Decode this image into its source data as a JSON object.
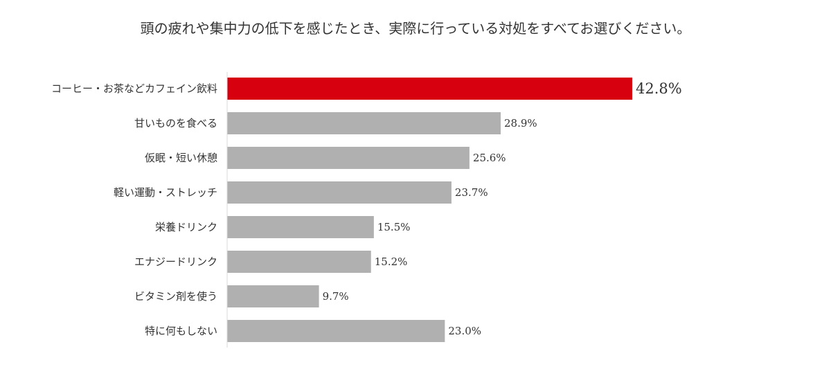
{
  "chart_data": {
    "type": "bar",
    "orientation": "horizontal",
    "title": "頭の疲れや集中力の低下を感じたとき、実際に行っている対処をすべてお選びください。",
    "categories": [
      "コーヒー・お茶などカフェイン飲料",
      "甘いものを食べる",
      "仮眠・短い休憩",
      "軽い運動・ストレッチ",
      "栄養ドリンク",
      "エナジードリンク",
      "ビタミン剤を使う",
      "特に何もしない"
    ],
    "values": [
      42.8,
      28.9,
      25.6,
      23.7,
      15.5,
      15.2,
      9.7,
      23.0
    ],
    "value_labels": [
      "42.8%",
      "28.9%",
      "25.6%",
      "23.7%",
      "15.5%",
      "15.2%",
      "9.7%",
      "23.0%"
    ],
    "highlight_index": 0,
    "xlim": [
      0,
      50
    ],
    "grid": false,
    "colors": {
      "highlight": "#d7000f",
      "default": "#b1b0b1"
    }
  }
}
